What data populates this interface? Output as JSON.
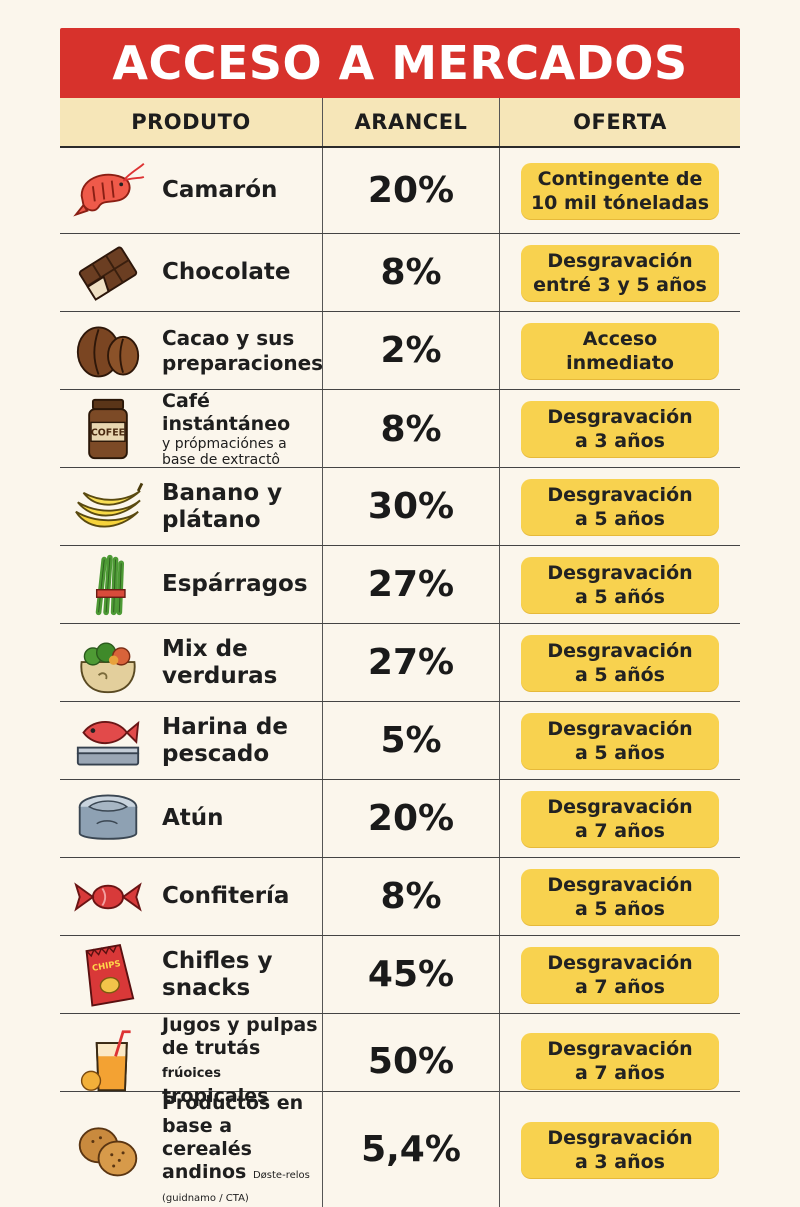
{
  "title": "ACCESO A MERCADOS",
  "headers": {
    "producto": "PRODUTO",
    "arancel": "ARANCEL",
    "oferta": "OFERTA"
  },
  "colors": {
    "banner": "#d7322c",
    "header_bg": "#f6e6b8",
    "pill": "#f8d24f",
    "page_bg": "#fbf6ec"
  },
  "rows": [
    {
      "icon": "shrimp-icon",
      "name": "Camarón",
      "name2": "",
      "sub": "",
      "note": "",
      "arancel": "20%",
      "oferta1": "Contingente de",
      "oferta2": "10 mil tóneladas"
    },
    {
      "icon": "chocolate-bar-icon",
      "name": "Chocolate",
      "name2": "",
      "sub": "",
      "note": "",
      "arancel": "8%",
      "oferta1": "Desgravación",
      "oferta2": "entré 3 y 5 años"
    },
    {
      "icon": "cacao-beans-icon",
      "name": "Cacao y sus",
      "name2": "preparaciones",
      "sub": "",
      "note": "",
      "arancel": "2%",
      "oferta1": "Acceso",
      "oferta2": "inmediato"
    },
    {
      "icon": "coffee-jar-icon",
      "icon_label": "COFEE",
      "name": "Café",
      "name2": "instántáneo",
      "sub": "y própmaciónes a base de extractô",
      "note": "",
      "arancel": "8%",
      "oferta1": "Desgravación",
      "oferta2": "a 3 años"
    },
    {
      "icon": "banana-icon",
      "name": "Banano y",
      "name2": "plátano",
      "sub": "",
      "note": "",
      "arancel": "30%",
      "oferta1": "Desgravación",
      "oferta2": "a 5 años"
    },
    {
      "icon": "asparagus-icon",
      "name": "Espárragos",
      "name2": "",
      "sub": "",
      "note": "",
      "arancel": "27%",
      "oferta1": "Desgravación",
      "oferta2": "a 5 añós"
    },
    {
      "icon": "vegetable-sack-icon",
      "name": "Mix de",
      "name2": "verduras",
      "sub": "",
      "note": "",
      "arancel": "27%",
      "oferta1": "Desgravación",
      "oferta2": "a 5 añós"
    },
    {
      "icon": "fish-tray-icon",
      "name": "Harina de",
      "name2": "pescado",
      "sub": "",
      "note": "",
      "arancel": "5%",
      "oferta1": "Desgravación",
      "oferta2": "a 5 años"
    },
    {
      "icon": "tuna-can-icon",
      "name": "Atún",
      "name2": "",
      "sub": "",
      "note": "",
      "arancel": "20%",
      "oferta1": "Desgravación",
      "oferta2": "a 7 años"
    },
    {
      "icon": "candy-icon",
      "name": "Confitería",
      "name2": "",
      "sub": "",
      "note": "",
      "arancel": "8%",
      "oferta1": "Desgravación",
      "oferta2": "a 5 años"
    },
    {
      "icon": "chips-bag-icon",
      "icon_label": "CHIPS",
      "name": "Chifles y",
      "name2": "snacks",
      "sub": "",
      "note": "",
      "arancel": "45%",
      "oferta1": "Desgravación",
      "oferta2": "a 7 años"
    },
    {
      "icon": "juice-glass-icon",
      "name": "Jugos y pulpas",
      "name2": "de trutás",
      "name2_extra": "frúoices",
      "name3": "tropicales",
      "sub": "",
      "note": "",
      "arancel": "50%",
      "oferta1": "Desgravación",
      "oferta2": "a 7 años"
    },
    {
      "icon": "cereal-cookies-icon",
      "name": "Productos en",
      "name2": "base a cerealés",
      "name3": "andinos",
      "note": "Døste-relos (guidnamo / CTA)",
      "sub": "",
      "arancel": "5,4%",
      "oferta1": "Desgravación",
      "oferta2": "a 3 años"
    }
  ]
}
